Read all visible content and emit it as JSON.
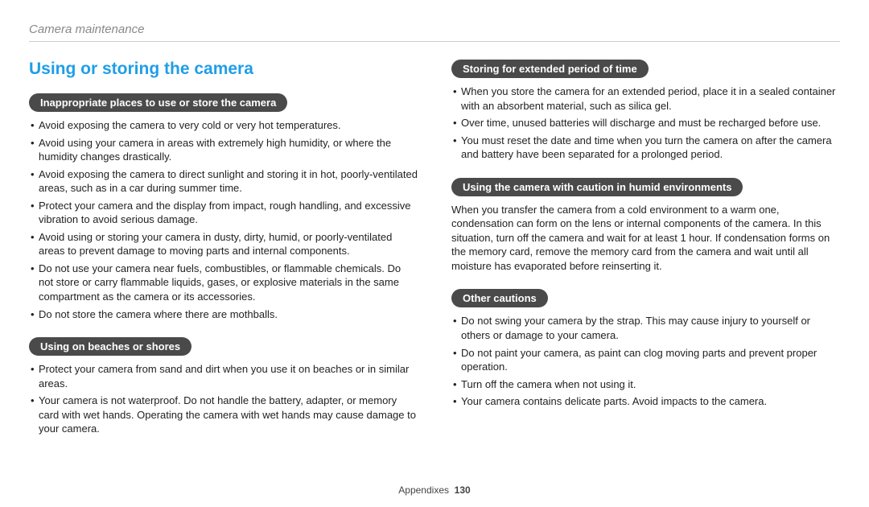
{
  "header": {
    "breadcrumb": "Camera maintenance"
  },
  "main_heading": "Using or storing the camera",
  "left": {
    "section1": {
      "title": "Inappropriate places to use or store the camera",
      "items": [
        "Avoid exposing the camera to very cold or very hot temperatures.",
        "Avoid using your camera in areas with extremely high humidity, or where the humidity changes drastically.",
        "Avoid exposing the camera to direct sunlight and storing it in hot, poorly-ventilated areas, such as in a car during summer time.",
        "Protect your camera and the display from impact, rough handling, and excessive vibration to avoid serious damage.",
        "Avoid using or storing your camera in dusty, dirty, humid, or poorly-ventilated areas to prevent damage to moving parts and internal components.",
        "Do not use your camera near fuels, combustibles, or flammable chemicals. Do not store or carry flammable liquids, gases, or explosive materials in the same compartment as the camera or its accessories.",
        "Do not store the camera where there are mothballs."
      ]
    },
    "section2": {
      "title": "Using on beaches or shores",
      "items": [
        "Protect your camera from sand and dirt when you use it on beaches or in similar areas.",
        "Your camera is not waterproof. Do not handle the battery, adapter, or memory card with wet hands. Operating the camera with wet hands may cause damage to your camera."
      ]
    }
  },
  "right": {
    "section1": {
      "title": "Storing for extended period of time",
      "items": [
        "When you store the camera for an extended period, place it in a sealed container with an absorbent material, such as silica gel.",
        "Over time, unused batteries will discharge and must be recharged before use.",
        "You must reset the date and time when you turn the camera on after the camera and battery have been separated for a prolonged period."
      ]
    },
    "section2": {
      "title": "Using the camera with caution in humid environments",
      "para": "When you transfer the camera from a cold environment to a warm one, condensation can form on the lens or internal components of the camera. In this situation, turn off the camera and wait for at least 1 hour. If condensation forms on the memory card, remove the memory card from the camera and wait until all moisture has evaporated before reinserting it."
    },
    "section3": {
      "title": "Other cautions",
      "items": [
        "Do not swing your camera by the strap. This may cause injury to yourself or others or damage to your camera.",
        "Do not paint your camera, as paint can clog moving parts and prevent proper operation.",
        "Turn off the camera when not using it.",
        "Your camera contains delicate parts. Avoid impacts to the camera."
      ]
    }
  },
  "footer": {
    "label": "Appendixes",
    "page": "130"
  },
  "colors": {
    "heading": "#1f9ee8",
    "pill_bg": "#4a4a4a",
    "text": "#222222",
    "breadcrumb": "#888888",
    "rule": "#cccccc"
  }
}
